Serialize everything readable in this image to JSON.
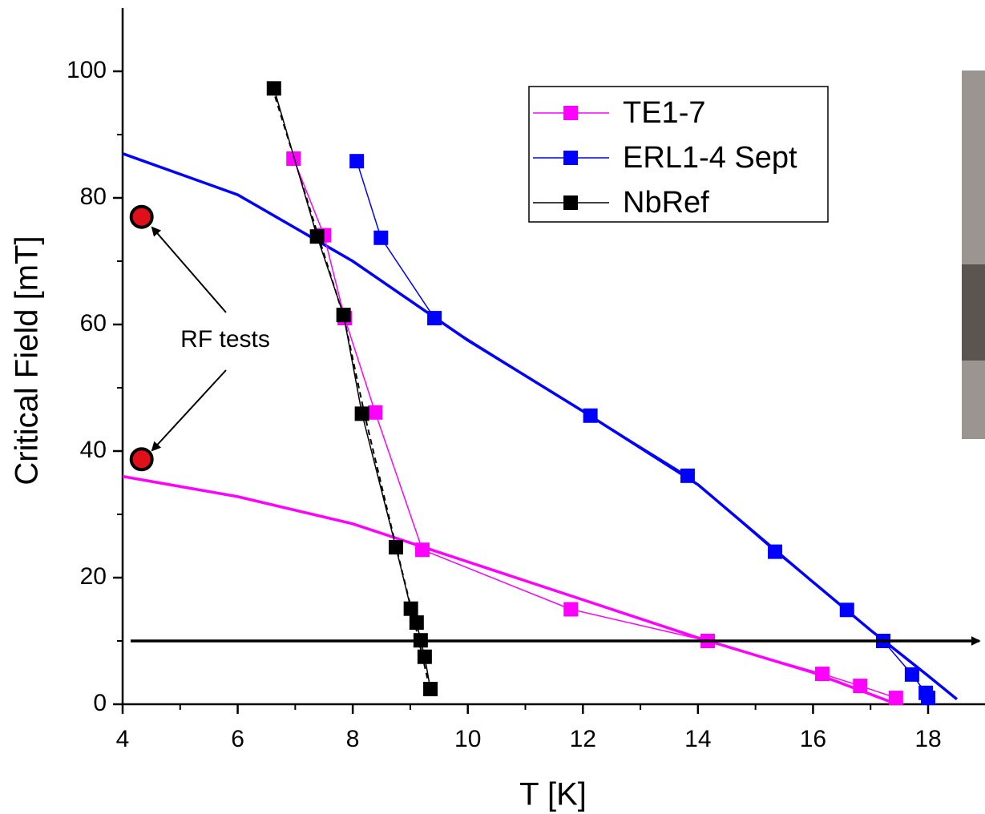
{
  "chart_data": {
    "type": "line",
    "xlabel": "T [K]",
    "ylabel": "Critical Field [mT]",
    "xlim": [
      4,
      19
    ],
    "ylim": [
      0,
      110
    ],
    "xticks": [
      4,
      6,
      8,
      10,
      12,
      14,
      16,
      18
    ],
    "yticks": [
      0,
      20,
      40,
      60,
      80,
      100
    ],
    "xminorticks": [
      5,
      7,
      9,
      11,
      13,
      15,
      17
    ],
    "yminorticks": [
      10,
      30,
      50,
      70,
      90
    ],
    "legend": "upper right",
    "series": [
      {
        "name": "TE1-7",
        "color": "#ff00ff",
        "x": [
          6.97,
          7.5,
          7.86,
          8.39,
          9.21,
          11.79,
          14.17,
          16.16,
          16.82,
          17.44
        ],
        "values": [
          86.2,
          74.1,
          61.0,
          46.1,
          24.4,
          15.0,
          10.0,
          4.8,
          2.9,
          1.0
        ]
      },
      {
        "name": "ERL1-4 Sept",
        "color": "#0000ff",
        "x": [
          8.07,
          8.49,
          9.42,
          12.13,
          13.82,
          15.34,
          16.59,
          17.22,
          17.72,
          17.96,
          18.0
        ],
        "values": [
          85.8,
          73.7,
          61.0,
          45.6,
          36.1,
          24.1,
          14.9,
          10.0,
          4.7,
          1.8,
          1.0
        ]
      },
      {
        "name": "NbRef",
        "color": "#000000",
        "x": [
          6.63,
          7.38,
          7.84,
          8.16,
          8.75,
          9.01,
          9.11,
          9.18,
          9.25,
          9.35
        ],
        "values": [
          97.3,
          73.9,
          61.5,
          45.9,
          24.8,
          15.1,
          12.9,
          10.1,
          7.5,
          2.4
        ]
      }
    ],
    "fits": [
      {
        "color": "#0000ff",
        "dashed": false,
        "x": [
          4,
          6,
          8,
          10,
          12,
          14,
          16,
          17,
          18,
          18.5
        ],
        "values": [
          87,
          80.5,
          70,
          57.5,
          46.3,
          34.7,
          19.3,
          11.7,
          4.5,
          0.8
        ]
      },
      {
        "color": "#ff00ff",
        "dashed": false,
        "x": [
          4,
          6,
          8,
          10,
          12,
          14,
          16,
          17.4
        ],
        "values": [
          36,
          32.8,
          28.5,
          22.5,
          16.5,
          10.5,
          5,
          0.2
        ]
      },
      {
        "color": "#000000",
        "dashed": true,
        "x": [
          6.65,
          7.4,
          7.85,
          8.2,
          8.75,
          9.1,
          9.35
        ],
        "values": [
          96,
          74,
          61,
          46,
          25,
          12,
          2
        ]
      }
    ],
    "hline": 10,
    "annotation": {
      "text": "RF tests",
      "color": "#e0101a",
      "x": [
        4.33,
        4.33
      ],
      "values": [
        77,
        38.7
      ]
    }
  }
}
